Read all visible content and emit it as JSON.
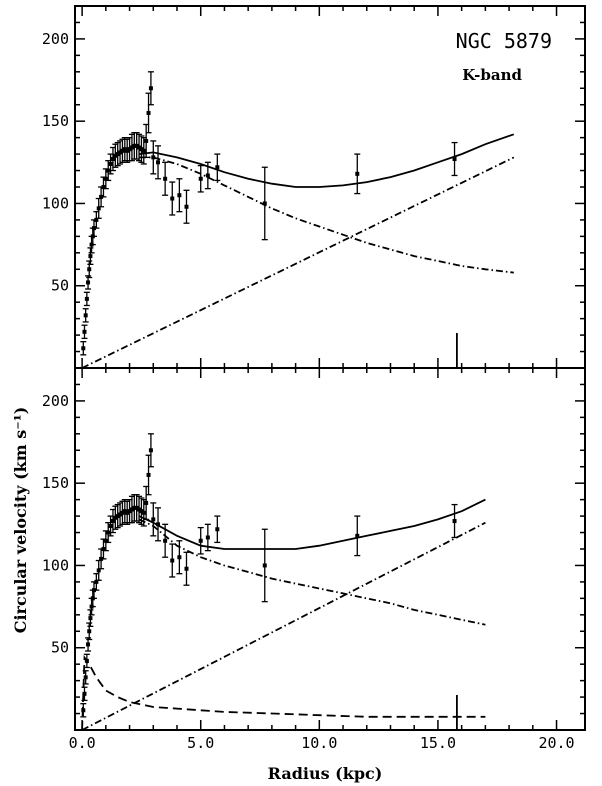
{
  "figure": {
    "title": "NGC 5879",
    "subtitle": "K-band",
    "xlabel": "Radius (kpc)",
    "ylabel": "Circular velocity (km s⁻¹)"
  },
  "chart_data": [
    {
      "type": "scatter",
      "panel": "top",
      "title": "NGC 5879",
      "subtitle": "K-band",
      "xlabel": "",
      "ylabel": "Circular velocity (km s⁻¹)",
      "xlim": [
        -0.3,
        21.2
      ],
      "ylim": [
        0,
        220
      ],
      "xticks": [
        0.0,
        5.0,
        10.0,
        15.0,
        20.0
      ],
      "yticks": [
        50,
        100,
        150,
        200
      ],
      "ytick_labels": [
        "50",
        "100",
        "150",
        "200"
      ],
      "observed": {
        "x": [
          0.05,
          0.1,
          0.15,
          0.2,
          0.25,
          0.3,
          0.35,
          0.4,
          0.45,
          0.5,
          0.6,
          0.7,
          0.8,
          0.9,
          1.0,
          1.1,
          1.2,
          1.3,
          1.4,
          1.5,
          1.6,
          1.7,
          1.8,
          1.9,
          2.0,
          2.1,
          2.2,
          2.3,
          2.4,
          2.5,
          2.6,
          2.7,
          2.8,
          2.9,
          3.0,
          3.2,
          3.5,
          3.8,
          4.1,
          4.4,
          5.0,
          5.3,
          5.7,
          7.7,
          11.6,
          15.7
        ],
        "y": [
          12,
          22,
          32,
          42,
          52,
          60,
          68,
          75,
          80,
          85,
          90,
          97,
          104,
          110,
          115,
          120,
          124,
          127,
          129,
          130,
          131,
          132,
          133,
          132,
          133,
          134,
          135,
          135,
          134,
          133,
          132,
          138,
          155,
          170,
          128,
          125,
          115,
          103,
          105,
          98,
          115,
          117,
          122,
          100,
          118,
          127
        ],
        "yerr": [
          4,
          4,
          4,
          4,
          4,
          5,
          5,
          5,
          5,
          5,
          5,
          6,
          6,
          6,
          6,
          6,
          6,
          7,
          7,
          7,
          7,
          7,
          7,
          7,
          7,
          8,
          8,
          8,
          8,
          8,
          8,
          10,
          12,
          10,
          10,
          10,
          10,
          10,
          10,
          10,
          8,
          8,
          8,
          22,
          12,
          10
        ]
      },
      "series": [
        {
          "name": "",
          "style": "solid",
          "x": [
            2.4,
            3.0,
            4.0,
            5.0,
            6.0,
            7.0,
            8.0,
            9.0,
            10.0,
            11.0,
            12.0,
            13.0,
            14.0,
            15.0,
            16.0,
            17.0,
            18.2
          ],
          "y": [
            130,
            131,
            128,
            124,
            119,
            115,
            112,
            110,
            110,
            111,
            113,
            116,
            120,
            125,
            130,
            136,
            142
          ]
        },
        {
          "name": "",
          "style": "dash-dot",
          "x": [
            2.4,
            3.0,
            4.0,
            5.0,
            6.0,
            7.0,
            8.0,
            9.0,
            10.0,
            11.0,
            12.0,
            13.0,
            14.0,
            15.0,
            16.0,
            17.0,
            18.2
          ],
          "y": [
            128,
            128,
            124,
            118,
            111,
            104,
            97,
            91,
            86,
            81,
            76,
            72,
            68,
            65,
            62,
            60,
            58
          ]
        },
        {
          "name": "",
          "style": "dash-dot",
          "x": [
            0.0,
            18.2
          ],
          "y": [
            0,
            128
          ]
        }
      ],
      "marker_x": 15.8
    },
    {
      "type": "scatter",
      "panel": "bottom",
      "title": "",
      "xlabel": "Radius (kpc)",
      "ylabel": "",
      "xlim": [
        -0.3,
        21.2
      ],
      "ylim": [
        0,
        220
      ],
      "xticks": [
        0.0,
        5.0,
        10.0,
        15.0,
        20.0
      ],
      "xtick_labels": [
        "0.0",
        "5.0",
        "10.0",
        "15.0",
        "20.0"
      ],
      "yticks": [
        50,
        100,
        150,
        200
      ],
      "ytick_labels": [
        "50",
        "100",
        "150",
        "200"
      ],
      "observed": {
        "x": [
          0.05,
          0.1,
          0.15,
          0.2,
          0.25,
          0.3,
          0.35,
          0.4,
          0.45,
          0.5,
          0.6,
          0.7,
          0.8,
          0.9,
          1.0,
          1.1,
          1.2,
          1.3,
          1.4,
          1.5,
          1.6,
          1.7,
          1.8,
          1.9,
          2.0,
          2.1,
          2.2,
          2.3,
          2.4,
          2.5,
          2.6,
          2.7,
          2.8,
          2.9,
          3.0,
          3.2,
          3.5,
          3.8,
          4.1,
          4.4,
          5.0,
          5.3,
          5.7,
          7.7,
          11.6,
          15.7
        ],
        "y": [
          12,
          22,
          32,
          42,
          52,
          60,
          68,
          75,
          80,
          85,
          90,
          97,
          104,
          110,
          115,
          120,
          124,
          127,
          129,
          130,
          131,
          132,
          133,
          132,
          133,
          134,
          135,
          135,
          134,
          133,
          132,
          138,
          155,
          170,
          128,
          125,
          115,
          103,
          105,
          98,
          115,
          117,
          122,
          100,
          118,
          127
        ],
        "yerr": [
          4,
          4,
          4,
          4,
          4,
          5,
          5,
          5,
          5,
          5,
          5,
          6,
          6,
          6,
          6,
          6,
          6,
          7,
          7,
          7,
          7,
          7,
          7,
          7,
          7,
          8,
          8,
          8,
          8,
          8,
          8,
          10,
          12,
          10,
          10,
          10,
          10,
          10,
          10,
          10,
          8,
          8,
          8,
          22,
          12,
          10
        ]
      },
      "series": [
        {
          "name": "",
          "style": "solid",
          "x": [
            2.4,
            3.0,
            4.0,
            5.0,
            6.0,
            7.0,
            8.0,
            9.0,
            10.0,
            11.0,
            12.0,
            13.0,
            14.0,
            15.0,
            16.0,
            17.0
          ],
          "y": [
            130,
            126,
            118,
            112,
            110,
            110,
            110,
            110,
            112,
            115,
            118,
            121,
            124,
            128,
            133,
            140
          ]
        },
        {
          "name": "",
          "style": "dash-dot",
          "x": [
            2.4,
            3.0,
            4.0,
            5.0,
            6.0,
            7.0,
            8.0,
            9.0,
            10.0,
            11.0,
            12.0,
            13.0,
            14.0,
            15.0,
            16.0,
            17.0
          ],
          "y": [
            128,
            124,
            112,
            105,
            100,
            96,
            92,
            89,
            86,
            83,
            80,
            77,
            73,
            70,
            67,
            64
          ]
        },
        {
          "name": "",
          "style": "dash-dot",
          "x": [
            0.0,
            17.0
          ],
          "y": [
            0,
            126
          ]
        },
        {
          "name": "",
          "style": "dashed",
          "x": [
            0.0,
            0.1,
            0.3,
            0.6,
            1.0,
            1.5,
            2.0,
            3.0,
            4.0,
            5.0,
            6.0,
            8.0,
            10.0,
            12.0,
            14.0,
            16.0,
            17.0
          ],
          "y": [
            0,
            44,
            40,
            32,
            24,
            20,
            17,
            14,
            13,
            12,
            11,
            10,
            9,
            8,
            8,
            8,
            8
          ]
        }
      ],
      "marker_x": 15.8
    }
  ]
}
